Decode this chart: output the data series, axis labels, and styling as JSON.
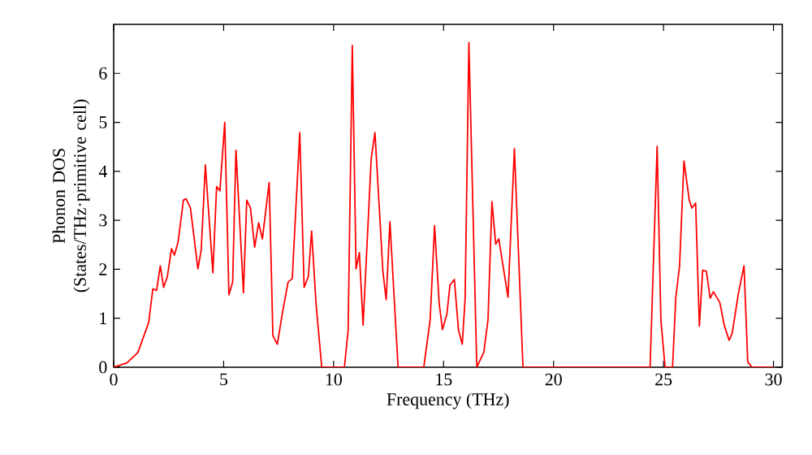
{
  "chart_data": {
    "type": "line",
    "xlabel": "Frequency (THz)",
    "ylabel": "Phonon DOS (States/THz·primitive cell)",
    "xlim": [
      0,
      30.4
    ],
    "ylim": [
      0,
      7
    ],
    "xticks": [
      0,
      5,
      10,
      15,
      20,
      25,
      30
    ],
    "yticks": [
      0,
      1,
      2,
      3,
      4,
      5,
      6
    ],
    "series": [
      {
        "color": "#ff0000",
        "x": [
          0,
          0.6,
          1.1,
          1.59,
          1.78,
          1.95,
          2.12,
          2.27,
          2.44,
          2.63,
          2.76,
          2.93,
          3.17,
          3.29,
          3.49,
          3.83,
          3.98,
          4.17,
          4.51,
          4.68,
          4.83,
          5.05,
          5.24,
          5.41,
          5.56,
          5.9,
          6.05,
          6.22,
          6.41,
          6.59,
          6.76,
          7.07,
          7.24,
          7.44,
          7.68,
          7.93,
          8.12,
          8.46,
          8.66,
          8.85,
          9.0,
          9.2,
          9.46,
          10.37,
          10.49,
          10.66,
          10.85,
          11.02,
          11.17,
          11.34,
          11.71,
          11.88,
          12.24,
          12.39,
          12.56,
          12.93,
          14.1,
          14.39,
          14.59,
          14.8,
          14.95,
          15.15,
          15.29,
          15.49,
          15.68,
          15.85,
          15.98,
          16.15,
          16.51,
          16.83,
          17.02,
          17.2,
          17.37,
          17.51,
          17.93,
          18.22,
          18.61,
          24.39,
          24.71,
          24.88,
          25.07,
          25.41,
          25.56,
          25.73,
          25.93,
          26.17,
          26.29,
          26.46,
          26.63,
          26.78,
          26.95,
          27.12,
          27.27,
          27.56,
          27.76,
          27.98,
          28.12,
          28.41,
          28.66,
          28.83,
          29.02,
          30
        ],
        "values": [
          0,
          0.09,
          0.3,
          0.91,
          1.6,
          1.57,
          2.07,
          1.63,
          1.85,
          2.42,
          2.29,
          2.56,
          3.41,
          3.44,
          3.25,
          2.01,
          2.4,
          4.13,
          1.93,
          3.69,
          3.6,
          5.0,
          1.48,
          1.74,
          4.43,
          1.52,
          3.41,
          3.25,
          2.45,
          2.95,
          2.62,
          3.77,
          0.64,
          0.47,
          1.13,
          1.74,
          1.81,
          4.79,
          1.63,
          1.85,
          2.78,
          1.3,
          0,
          0,
          0,
          0.75,
          6.57,
          2.01,
          2.34,
          0.86,
          4.26,
          4.79,
          1.96,
          1.38,
          2.97,
          0,
          0,
          0.97,
          2.89,
          1.3,
          0.77,
          1.08,
          1.68,
          1.79,
          0.75,
          0.47,
          1.41,
          6.63,
          0,
          0.31,
          0.97,
          3.38,
          2.51,
          2.62,
          1.43,
          4.46,
          0,
          0,
          4.51,
          0.97,
          0,
          0,
          1.43,
          2.07,
          4.21,
          3.41,
          3.25,
          3.35,
          0.84,
          1.98,
          1.96,
          1.41,
          1.54,
          1.32,
          0.86,
          0.55,
          0.69,
          1.52,
          2.07,
          0.11,
          0,
          0
        ]
      }
    ]
  }
}
